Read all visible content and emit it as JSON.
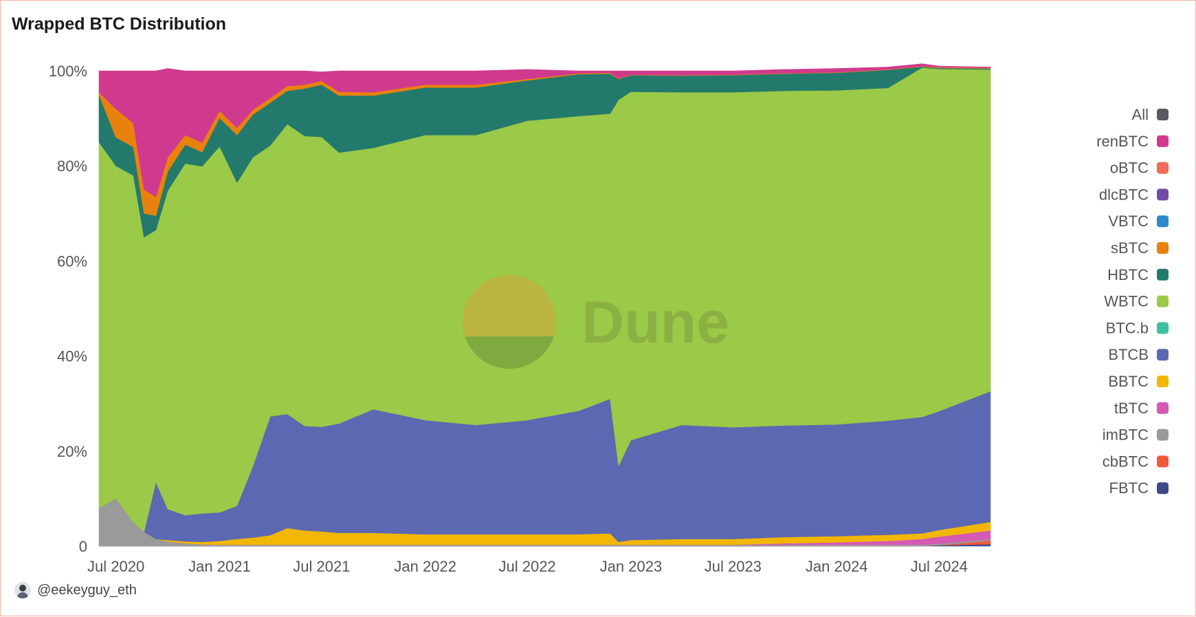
{
  "title": "Wrapped BTC Distribution",
  "author": "@eekeyguy_eth",
  "watermark": "Dune",
  "chart_data": {
    "type": "area",
    "stacked": "percent",
    "y_tick_labels": [
      "0",
      "20%",
      "40%",
      "60%",
      "80%",
      "100%"
    ],
    "y_ticks": [
      0,
      20,
      40,
      60,
      80,
      100
    ],
    "ylim": [
      0,
      100
    ],
    "x_range": [
      "2020-06-01",
      "2024-09-30"
    ],
    "x_tick_labels": [
      "Jul 2020",
      "Jan 2021",
      "Jul 2021",
      "Jan 2022",
      "Jul 2022",
      "Jan 2023",
      "Jul 2023",
      "Jan 2024",
      "Jul 2024"
    ],
    "x_ticks": [
      "2020-07-01",
      "2021-01-01",
      "2021-07-01",
      "2022-01-01",
      "2022-07-01",
      "2023-01-01",
      "2023-07-01",
      "2024-01-01",
      "2024-07-01"
    ],
    "legend_position": "right",
    "x": [
      "2020-06-01",
      "2020-07-01",
      "2020-08-01",
      "2020-08-20",
      "2020-09-10",
      "2020-10-01",
      "2020-11-01",
      "2020-12-01",
      "2021-01-01",
      "2021-02-01",
      "2021-03-01",
      "2021-04-01",
      "2021-05-01",
      "2021-06-01",
      "2021-07-01",
      "2021-08-01",
      "2021-10-01",
      "2022-01-01",
      "2022-04-01",
      "2022-07-01",
      "2022-10-01",
      "2022-11-25",
      "2022-12-10",
      "2023-01-01",
      "2023-04-01",
      "2023-07-01",
      "2023-10-01",
      "2024-01-01",
      "2024-04-01",
      "2024-06-01",
      "2024-07-01",
      "2024-09-30"
    ],
    "series": [
      {
        "name": "FBTC",
        "color": "#3d4a8a",
        "values": [
          0,
          0,
          0,
          0,
          0,
          0,
          0,
          0,
          0,
          0,
          0,
          0,
          0,
          0,
          0,
          0,
          0,
          0,
          0,
          0,
          0,
          0,
          0,
          0,
          0,
          0,
          0,
          0,
          0,
          0,
          0.2,
          0.4
        ]
      },
      {
        "name": "cbBTC",
        "color": "#f05a3c",
        "values": [
          0,
          0,
          0,
          0,
          0,
          0,
          0,
          0,
          0,
          0,
          0,
          0,
          0,
          0,
          0,
          0,
          0,
          0,
          0,
          0,
          0,
          0,
          0,
          0,
          0,
          0,
          0,
          0,
          0,
          0,
          0,
          0.8
        ]
      },
      {
        "name": "imBTC",
        "color": "#9a9a9a",
        "values": [
          8,
          10,
          5,
          3,
          1.5,
          1,
          0.6,
          0.4,
          0.3,
          0.3,
          0.3,
          0.3,
          0.3,
          0.3,
          0.3,
          0.3,
          0.3,
          0.3,
          0.3,
          0.3,
          0.3,
          0.3,
          0.3,
          0.3,
          0.3,
          0.3,
          0.3,
          0.3,
          0.3,
          0.3,
          0.3,
          0.3
        ]
      },
      {
        "name": "tBTC",
        "color": "#d45ab4",
        "values": [
          0,
          0,
          0,
          0,
          0,
          0,
          0,
          0,
          0,
          0,
          0,
          0,
          0,
          0,
          0,
          0,
          0,
          0,
          0,
          0,
          0,
          0,
          0,
          0,
          0,
          0,
          0.3,
          0.5,
          0.8,
          1.2,
          1.5,
          1.8
        ]
      },
      {
        "name": "BBTC",
        "color": "#f2b705",
        "values": [
          0,
          0,
          0,
          0,
          0,
          0.3,
          0.4,
          0.5,
          0.8,
          1.2,
          1.5,
          2,
          3.5,
          3,
          2.8,
          2.5,
          2.5,
          2.2,
          2.2,
          2.2,
          2.2,
          2.4,
          0.6,
          1,
          1.2,
          1.2,
          1.3,
          1.3,
          1.3,
          1.2,
          1.4,
          1.8
        ]
      },
      {
        "name": "BTCB",
        "color": "#5c68b1",
        "values": [
          0,
          0,
          0,
          0,
          12,
          6.5,
          5.5,
          6,
          6,
          7,
          15,
          25,
          24,
          22,
          22,
          23,
          26,
          24,
          23,
          24,
          26,
          28.3,
          16,
          21,
          24,
          23.5,
          23.5,
          23.5,
          24,
          24.5,
          25,
          27.5
        ]
      },
      {
        "name": "BTC.b",
        "color": "#3fbfa0",
        "values": [
          0,
          0,
          0,
          0,
          0,
          0,
          0,
          0,
          0,
          0,
          0,
          0,
          0,
          0,
          0,
          0,
          0,
          0,
          0,
          0,
          0,
          0,
          0,
          0,
          0,
          0,
          0,
          0,
          0,
          0,
          0,
          0
        ]
      },
      {
        "name": "WBTC",
        "color": "#9bc948",
        "values": [
          77,
          70,
          73,
          62,
          53,
          67,
          74,
          73,
          77,
          68,
          65,
          57,
          61,
          61,
          61,
          57,
          55,
          60,
          61,
          63,
          62,
          60,
          77,
          73.3,
          70,
          70.5,
          70.4,
          70.3,
          70,
          73.5,
          72,
          67.7
        ]
      },
      {
        "name": "HBTC",
        "color": "#237a6c",
        "values": [
          10,
          6,
          6,
          5,
          3,
          4,
          4,
          3,
          6,
          10,
          9,
          9,
          7,
          10,
          11,
          12,
          11,
          10,
          10,
          8.5,
          8.8,
          8.4,
          4.4,
          3.5,
          3.5,
          3.6,
          3.6,
          3.7,
          3.8,
          0.2,
          0.2,
          0.2
        ]
      },
      {
        "name": "sBTC",
        "color": "#e8820c",
        "values": [
          0.5,
          6,
          5,
          5,
          4,
          3,
          2,
          2,
          1.5,
          1.5,
          1,
          1,
          1,
          0.8,
          0.8,
          0.8,
          0.7,
          0.6,
          0.6,
          0.3,
          0.2,
          0.2,
          0.1,
          0.1,
          0.1,
          0.1,
          0.1,
          0.1,
          0.1,
          0.1,
          0.1,
          0.1
        ]
      },
      {
        "name": "VBTC",
        "color": "#2e8bc9",
        "values": [
          0,
          0,
          0,
          0,
          0,
          0,
          0,
          0,
          0,
          0,
          0,
          0,
          0,
          0,
          0,
          0,
          0,
          0,
          0,
          0,
          0,
          0,
          0,
          0,
          0,
          0,
          0,
          0,
          0,
          0,
          0,
          0
        ]
      },
      {
        "name": "dlcBTC",
        "color": "#6e4ea5",
        "values": [
          0,
          0,
          0,
          0,
          0,
          0,
          0,
          0,
          0,
          0,
          0,
          0,
          0,
          0,
          0,
          0,
          0,
          0,
          0,
          0,
          0,
          0,
          0,
          0,
          0,
          0,
          0,
          0,
          0,
          0,
          0,
          0
        ]
      },
      {
        "name": "oBTC",
        "color": "#f06b5a",
        "values": [
          0,
          0,
          0,
          0,
          0,
          0,
          0,
          0,
          0,
          0,
          0,
          0,
          0,
          0,
          0,
          0,
          0,
          0,
          0,
          0,
          0,
          0,
          0,
          0,
          0,
          0,
          0,
          0,
          0,
          0,
          0.1,
          0.1
        ]
      },
      {
        "name": "renBTC",
        "color": "#d03a8e",
        "values": [
          4.5,
          8,
          11,
          25,
          26.5,
          18.7,
          13.5,
          15.1,
          8.4,
          12,
          8.2,
          5.7,
          3.2,
          2.9,
          1.9,
          4.4,
          4.5,
          2.9,
          2.9,
          2,
          0.5,
          0.4,
          1.6,
          0.8,
          0.9,
          0.8,
          0.8,
          0.8,
          0.5,
          0.5,
          0.2,
          0.1
        ]
      },
      {
        "name": "All",
        "color": "#5a5a62",
        "values": [
          0,
          0,
          0,
          0,
          0,
          0,
          0,
          0,
          0,
          0,
          0,
          0,
          0,
          0,
          0,
          0,
          0,
          0,
          0,
          0,
          0,
          0,
          0,
          0,
          0,
          0,
          0,
          0,
          0,
          0,
          0,
          0
        ]
      }
    ],
    "legend": [
      "All",
      "renBTC",
      "oBTC",
      "dlcBTC",
      "VBTC",
      "sBTC",
      "HBTC",
      "WBTC",
      "BTC.b",
      "BTCB",
      "BBTC",
      "tBTC",
      "imBTC",
      "cbBTC",
      "FBTC"
    ]
  }
}
